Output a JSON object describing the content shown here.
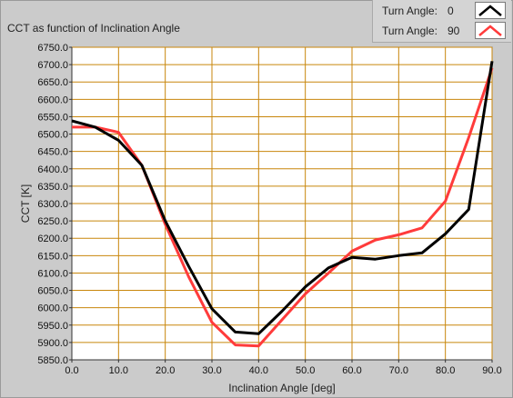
{
  "chart_data": {
    "type": "line",
    "title": "CCT as function of Inclination Angle",
    "xlabel": "Inclination Angle [deg]",
    "ylabel": "CCT [K]",
    "xlim": [
      0,
      90
    ],
    "ylim": [
      5850,
      6750
    ],
    "x_ticks": [
      "0.0",
      "10.0",
      "20.0",
      "30.0",
      "40.0",
      "50.0",
      "60.0",
      "70.0",
      "80.0",
      "90.0"
    ],
    "y_ticks": [
      "5850.0",
      "5900.0",
      "5950.0",
      "6000.0",
      "6050.0",
      "6100.0",
      "6150.0",
      "6200.0",
      "6250.0",
      "6300.0",
      "6350.0",
      "6400.0",
      "6450.0",
      "6500.0",
      "6550.0",
      "6600.0",
      "6650.0",
      "6700.0",
      "6750.0"
    ],
    "grid": true,
    "legend_position": "top-right",
    "series": [
      {
        "name": "Turn Angle:",
        "turn_angle": "0",
        "color": "#000000",
        "x": [
          0,
          5,
          10,
          15,
          20,
          25,
          30,
          35,
          40,
          45,
          50,
          55,
          60,
          65,
          70,
          75,
          80,
          85,
          90
        ],
        "y": [
          6538,
          6520,
          6482,
          6410,
          6250,
          6120,
          5997,
          5930,
          5925,
          5990,
          6060,
          6115,
          6145,
          6140,
          6150,
          6158,
          6213,
          6283,
          6710
        ]
      },
      {
        "name": "Turn Angle:",
        "turn_angle": "90",
        "color": "#ff3b3b",
        "x": [
          0,
          5,
          10,
          15,
          20,
          25,
          30,
          35,
          40,
          45,
          50,
          55,
          60,
          65,
          70,
          75,
          80,
          85,
          90
        ],
        "y": [
          6520,
          6520,
          6505,
          6410,
          6240,
          6090,
          5958,
          5893,
          5890,
          5965,
          6040,
          6100,
          6163,
          6195,
          6210,
          6230,
          6307,
          6490,
          6690
        ]
      }
    ]
  },
  "colors": {
    "plot_bg": "#ffffff",
    "grid": "#c8860b",
    "panel_bg": "#cbcbcb"
  }
}
